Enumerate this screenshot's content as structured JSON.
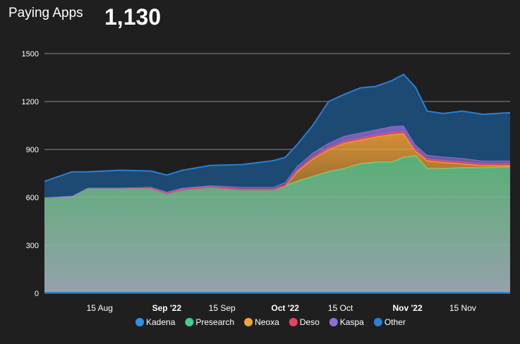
{
  "header": {
    "title": "Paying Apps",
    "value": "1,130"
  },
  "chart_data": {
    "type": "area",
    "stacked": true,
    "x_start": "2022-08-01",
    "x_end": "2022-11-27",
    "ylim": [
      0,
      1500
    ],
    "yticks": [
      0,
      300,
      600,
      900,
      1200,
      1500
    ],
    "grid": true,
    "legend_position": "bottom",
    "xticks": [
      {
        "label": "15 Aug",
        "date": "2022-08-15",
        "bold": false
      },
      {
        "label": "Sep '22",
        "date": "2022-09-01",
        "bold": true
      },
      {
        "label": "15 Sep",
        "date": "2022-09-15",
        "bold": false
      },
      {
        "label": "Oct '22",
        "date": "2022-10-01",
        "bold": true
      },
      {
        "label": "15 Oct",
        "date": "2022-10-15",
        "bold": false
      },
      {
        "label": "Nov '22",
        "date": "2022-11-01",
        "bold": true
      },
      {
        "label": "15 Nov",
        "date": "2022-11-15",
        "bold": false
      }
    ],
    "dates": [
      "2022-08-01",
      "2022-08-08",
      "2022-08-12",
      "2022-08-20",
      "2022-08-28",
      "2022-09-01",
      "2022-09-05",
      "2022-09-12",
      "2022-09-20",
      "2022-09-28",
      "2022-10-01",
      "2022-10-04",
      "2022-10-08",
      "2022-10-12",
      "2022-10-16",
      "2022-10-20",
      "2022-10-24",
      "2022-10-28",
      "2022-10-31",
      "2022-11-03",
      "2022-11-06",
      "2022-11-10",
      "2022-11-15",
      "2022-11-20",
      "2022-11-27"
    ],
    "series": [
      {
        "name": "Kadena",
        "color": "#2f8fe8",
        "values": [
          10,
          10,
          10,
          10,
          10,
          10,
          10,
          10,
          10,
          10,
          10,
          10,
          10,
          10,
          10,
          10,
          10,
          10,
          10,
          10,
          10,
          10,
          10,
          10,
          10
        ]
      },
      {
        "name": "Presearch",
        "color": "#3fcf8e",
        "values": [
          590,
          600,
          650,
          650,
          650,
          615,
          640,
          655,
          640,
          640,
          660,
          690,
          720,
          750,
          770,
          800,
          810,
          810,
          840,
          850,
          770,
          770,
          775,
          775,
          780
        ]
      },
      {
        "name": "Neoxa",
        "color": "#f2a33a",
        "values": [
          0,
          0,
          0,
          0,
          0,
          0,
          0,
          0,
          0,
          0,
          0,
          60,
          110,
          140,
          160,
          150,
          160,
          175,
          150,
          30,
          50,
          40,
          25,
          15,
          10
        ]
      },
      {
        "name": "Deso",
        "color": "#e5455e",
        "values": [
          0,
          0,
          0,
          0,
          0,
          0,
          0,
          0,
          0,
          0,
          5,
          10,
          10,
          10,
          10,
          10,
          10,
          10,
          10,
          10,
          10,
          10,
          10,
          10,
          10
        ]
      },
      {
        "name": "Kaspa",
        "color": "#8e6fd6",
        "values": [
          0,
          0,
          0,
          0,
          5,
          10,
          10,
          10,
          15,
          15,
          20,
          25,
          30,
          30,
          35,
          35,
          35,
          40,
          40,
          30,
          25,
          25,
          25,
          20,
          20
        ]
      },
      {
        "name": "Other",
        "color": "#2b7fd4",
        "values": [
          100,
          150,
          100,
          110,
          100,
          105,
          110,
          125,
          140,
          165,
          155,
          135,
          170,
          260,
          260,
          280,
          270,
          285,
          320,
          360,
          275,
          270,
          295,
          290,
          300
        ]
      }
    ]
  }
}
